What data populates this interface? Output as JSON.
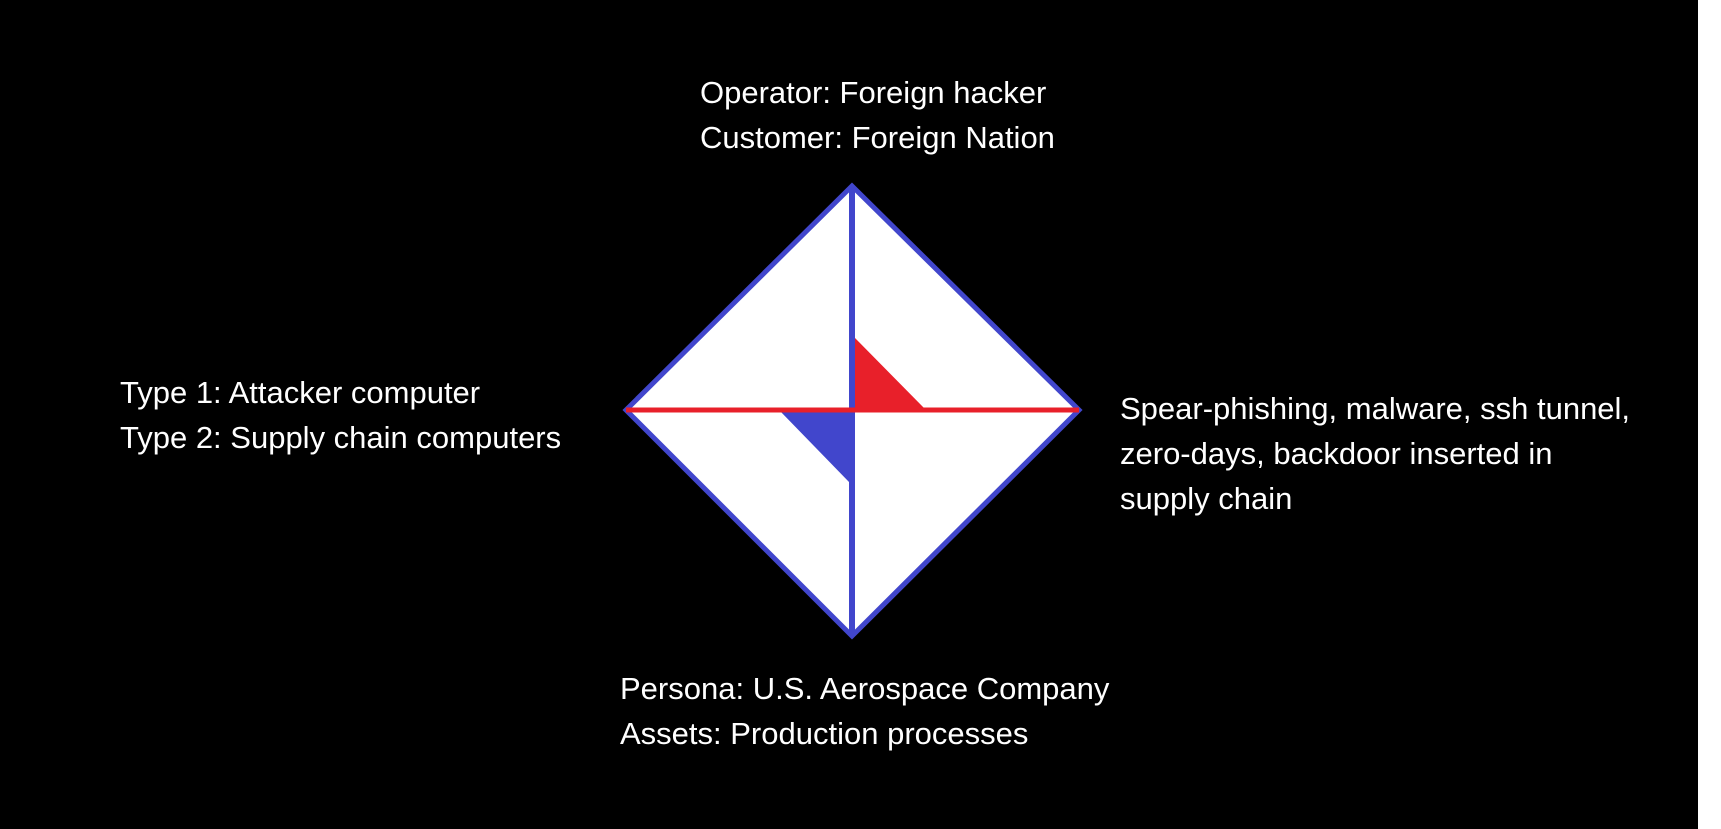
{
  "colors": {
    "background": "#000000",
    "text": "#ffffff",
    "diamond_fill": "#ffffff",
    "diamond_outline": "#4146cc",
    "horizontal_axis": "#e8202a",
    "red_marker": "#e8202a",
    "blue_marker": "#4146cc"
  },
  "diagram": {
    "top": {
      "line1": "Operator: Foreign hacker",
      "line2": "Customer: Foreign Nation"
    },
    "left": {
      "line1": "Type 1: Attacker computer",
      "line2": "Type 2: Supply chain computers"
    },
    "right": {
      "line1": "Spear-phishing, malware, ssh tunnel,",
      "line2": "zero-days, backdoor inserted in",
      "line3": "supply chain"
    },
    "bottom": {
      "line1": "Persona: U.S. Aerospace Company",
      "line2": "Assets: Production processes"
    }
  }
}
